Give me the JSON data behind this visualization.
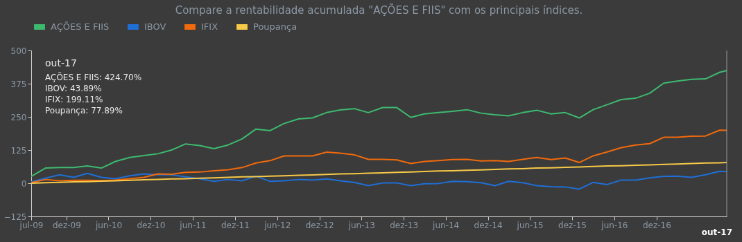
{
  "chart_data": {
    "type": "line",
    "title": "Compare a rentabilidade acumulada \"AÇÕES E FIIS\" com os principais índices.",
    "x": [
      "2009-07",
      "2009-09",
      "2009-11",
      "2010-01",
      "2010-03",
      "2010-05",
      "2010-07",
      "2010-09",
      "2010-11",
      "2011-01",
      "2011-03",
      "2011-05",
      "2011-07",
      "2011-09",
      "2011-11",
      "2012-01",
      "2012-03",
      "2012-05",
      "2012-07",
      "2012-09",
      "2012-11",
      "2013-01",
      "2013-03",
      "2013-05",
      "2013-07",
      "2013-09",
      "2013-11",
      "2014-01",
      "2014-03",
      "2014-05",
      "2014-07",
      "2014-09",
      "2014-11",
      "2015-01",
      "2015-03",
      "2015-05",
      "2015-07",
      "2015-09",
      "2015-11",
      "2016-01",
      "2016-03",
      "2016-05",
      "2016-07",
      "2016-09",
      "2016-11",
      "2017-01",
      "2017-03",
      "2017-05",
      "2017-07",
      "2017-09",
      "2017-10"
    ],
    "series": [
      {
        "name": "AÇÕES E FIIS",
        "color": "#3dba6f",
        "values": [
          26,
          57,
          59,
          59,
          65,
          57,
          82,
          97,
          104,
          111,
          125,
          148,
          142,
          130,
          144,
          167,
          204,
          198,
          225,
          242,
          246,
          266,
          276,
          281,
          266,
          285,
          285,
          248,
          261,
          266,
          271,
          277,
          264,
          258,
          254,
          266,
          275,
          261,
          266,
          246,
          277,
          296,
          315,
          320,
          339,
          377,
          385,
          391,
          393,
          418,
          424.7
        ]
      },
      {
        "name": "IBOV",
        "color": "#1f6fd6",
        "values": [
          5,
          19,
          32,
          22,
          37,
          22,
          17,
          28,
          35,
          32,
          32,
          24,
          17,
          7,
          14,
          9,
          27,
          7,
          9,
          14,
          12,
          16,
          9,
          3,
          -9,
          1,
          1,
          -9,
          -2,
          -1,
          7,
          6,
          2,
          -9,
          7,
          2,
          -9,
          -13,
          -14,
          -22,
          3,
          -5,
          12,
          12,
          20,
          26,
          27,
          22,
          32,
          45,
          43.89
        ]
      },
      {
        "name": "IFIX",
        "color": "#f26a0c",
        "values": [
          2,
          14,
          9,
          11,
          11,
          10,
          12,
          17,
          22,
          35,
          34,
          41,
          42,
          47,
          51,
          59,
          76,
          85,
          103,
          103,
          103,
          117,
          113,
          107,
          90,
          90,
          88,
          74,
          82,
          85,
          89,
          90,
          84,
          85,
          82,
          90,
          97,
          89,
          95,
          78,
          103,
          118,
          134,
          144,
          149,
          173,
          173,
          177,
          178,
          200,
          199.11
        ]
      },
      {
        "name": "Poupança",
        "color": "#f7c948",
        "values": [
          0,
          2,
          3,
          5,
          6,
          8,
          9,
          11,
          13,
          14,
          16,
          17,
          19,
          20,
          22,
          24,
          25,
          27,
          28,
          30,
          31,
          33,
          35,
          36,
          38,
          39,
          41,
          42,
          44,
          46,
          47,
          49,
          50,
          52,
          54,
          55,
          57,
          58,
          60,
          61,
          63,
          65,
          66,
          68,
          69,
          71,
          72,
          74,
          76,
          77,
          77.89
        ]
      }
    ],
    "xlim": [
      "2009-07",
      "2017-10"
    ],
    "xticks": [
      {
        "value": "2009-07",
        "label": "jul-09"
      },
      {
        "value": "2009-12",
        "label": "dez-09"
      },
      {
        "value": "2010-06",
        "label": "jun-10"
      },
      {
        "value": "2010-12",
        "label": "dez-10"
      },
      {
        "value": "2011-06",
        "label": "jun-11"
      },
      {
        "value": "2011-12",
        "label": "dez-11"
      },
      {
        "value": "2012-06",
        "label": "jun-12"
      },
      {
        "value": "2012-12",
        "label": "dez-12"
      },
      {
        "value": "2013-06",
        "label": "jun-13"
      },
      {
        "value": "2013-12",
        "label": "dez-13"
      },
      {
        "value": "2014-06",
        "label": "jun-14"
      },
      {
        "value": "2014-12",
        "label": "dez-14"
      },
      {
        "value": "2015-06",
        "label": "jun-15"
      },
      {
        "value": "2015-12",
        "label": "dez-15"
      },
      {
        "value": "2016-06",
        "label": "jun-16"
      },
      {
        "value": "2016-12",
        "label": "dez-16"
      }
    ],
    "ylim": [
      -125,
      500
    ],
    "yticks": [
      -125,
      0,
      125,
      250,
      375,
      500
    ],
    "ref_lines": [
      {
        "axis": "x",
        "value": "2017-10",
        "label": "out-17",
        "color": "#9a9a9a"
      }
    ],
    "annotations": [
      "out-17",
      "AÇÕES E FIIS: 424.70%",
      "IBOV: 43.89%",
      "IFIX: 199.11%",
      "Poupança: 77.89%"
    ],
    "grid": false,
    "legend": "top",
    "marker": "none",
    "line_style": "solid"
  }
}
